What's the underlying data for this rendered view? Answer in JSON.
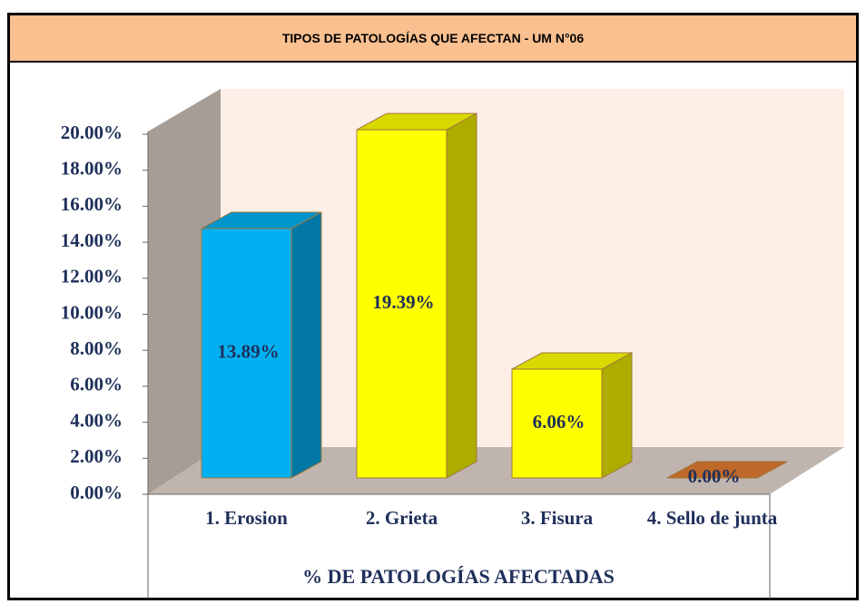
{
  "title": "TIPOS  DE PATOLOGÍAS QUE AFECTAN - UM N°06",
  "chart_data": {
    "type": "bar3d",
    "categories": [
      "1. Erosion",
      "2. Grieta",
      "3. Fisura",
      "4. Sello de junta"
    ],
    "values": [
      13.89,
      19.39,
      6.06,
      0
    ],
    "value_labels": [
      "13.89%",
      "19.39%",
      "6.06%",
      "0.00%"
    ],
    "colors": [
      "#00b0f0",
      "#ffff00",
      "#ffff00",
      "#e07a30"
    ],
    "x_label": "% DE PATOLOGÍAS AFECTADAS",
    "ylim": [
      0,
      20
    ],
    "yticks": [
      {
        "value": 0,
        "label": "0.00%"
      },
      {
        "value": 2,
        "label": "2.00%"
      },
      {
        "value": 4,
        "label": "4.00%"
      },
      {
        "value": 6,
        "label": "6.00%"
      },
      {
        "value": 8,
        "label": "8.00%"
      },
      {
        "value": 10,
        "label": "10.00%"
      },
      {
        "value": 12,
        "label": "12.00%"
      },
      {
        "value": 14,
        "label": "14.00%"
      },
      {
        "value": 16,
        "label": "16.00%"
      },
      {
        "value": 18,
        "label": "18.00%"
      },
      {
        "value": 20,
        "label": "20.00%"
      }
    ]
  }
}
